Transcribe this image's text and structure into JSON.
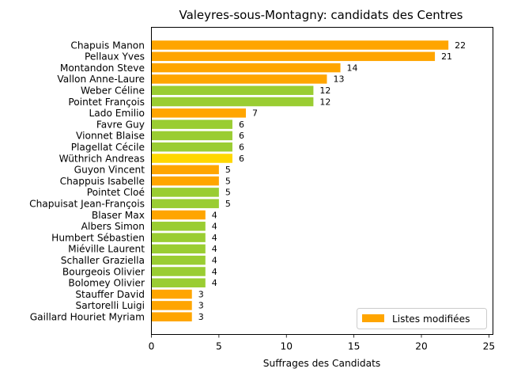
{
  "chart_data": {
    "type": "bar",
    "orientation": "horizontal",
    "title": "Valeyres-sous-Montagny: candidats des Centres",
    "xlabel": "Suffrages des Candidats",
    "ylabel": "",
    "xlim": [
      0,
      25.3
    ],
    "xticks": [
      "0",
      "5",
      "10",
      "15",
      "20",
      "25"
    ],
    "grid": false,
    "legend": {
      "placement": "lower-right",
      "entries": [
        {
          "label": "Listes modifiées",
          "color": "#FFA500"
        }
      ]
    },
    "categories": [
      "Chapuis Manon",
      "Pellaux Yves",
      "Montandon Steve",
      "Vallon Anne-Laure",
      "Weber Céline",
      "Pointet François",
      "Lado Emilio",
      "Favre Guy",
      "Vionnet Blaise",
      "Plagellat Cécile",
      "Wüthrich Andreas",
      "Guyon Vincent",
      "Chappuis Isabelle",
      "Pointet Cloé",
      "Chapuisat Jean-François",
      "Blaser Max",
      "Albers Simon",
      "Humbert Sébastien",
      "Miéville Laurent",
      "Schaller Graziella",
      "Bourgeois Olivier",
      "Bolomey Olivier",
      "Stauffer David",
      "Sartorelli Luigi",
      "Gaillard Houriet Myriam"
    ],
    "values": [
      22,
      21,
      14,
      13,
      12,
      12,
      7,
      6,
      6,
      6,
      6,
      5,
      5,
      5,
      5,
      4,
      4,
      4,
      4,
      4,
      4,
      4,
      3,
      3,
      3
    ],
    "value_labels": [
      "22",
      "21",
      "14",
      "13",
      "12",
      "12",
      "7",
      "6",
      "6",
      "6",
      "6",
      "5",
      "5",
      "5",
      "5",
      "4",
      "4",
      "4",
      "4",
      "4",
      "4",
      "4",
      "3",
      "3",
      "3"
    ],
    "bar_colors": [
      "#FFA500",
      "#FFA500",
      "#FFA500",
      "#FFA500",
      "#9ACD32",
      "#9ACD32",
      "#FFA500",
      "#9ACD32",
      "#9ACD32",
      "#9ACD32",
      "#FFD700",
      "#FFA500",
      "#FFA500",
      "#9ACD32",
      "#9ACD32",
      "#FFA500",
      "#9ACD32",
      "#9ACD32",
      "#9ACD32",
      "#9ACD32",
      "#9ACD32",
      "#9ACD32",
      "#FFA500",
      "#FFA500",
      "#FFA500"
    ]
  }
}
